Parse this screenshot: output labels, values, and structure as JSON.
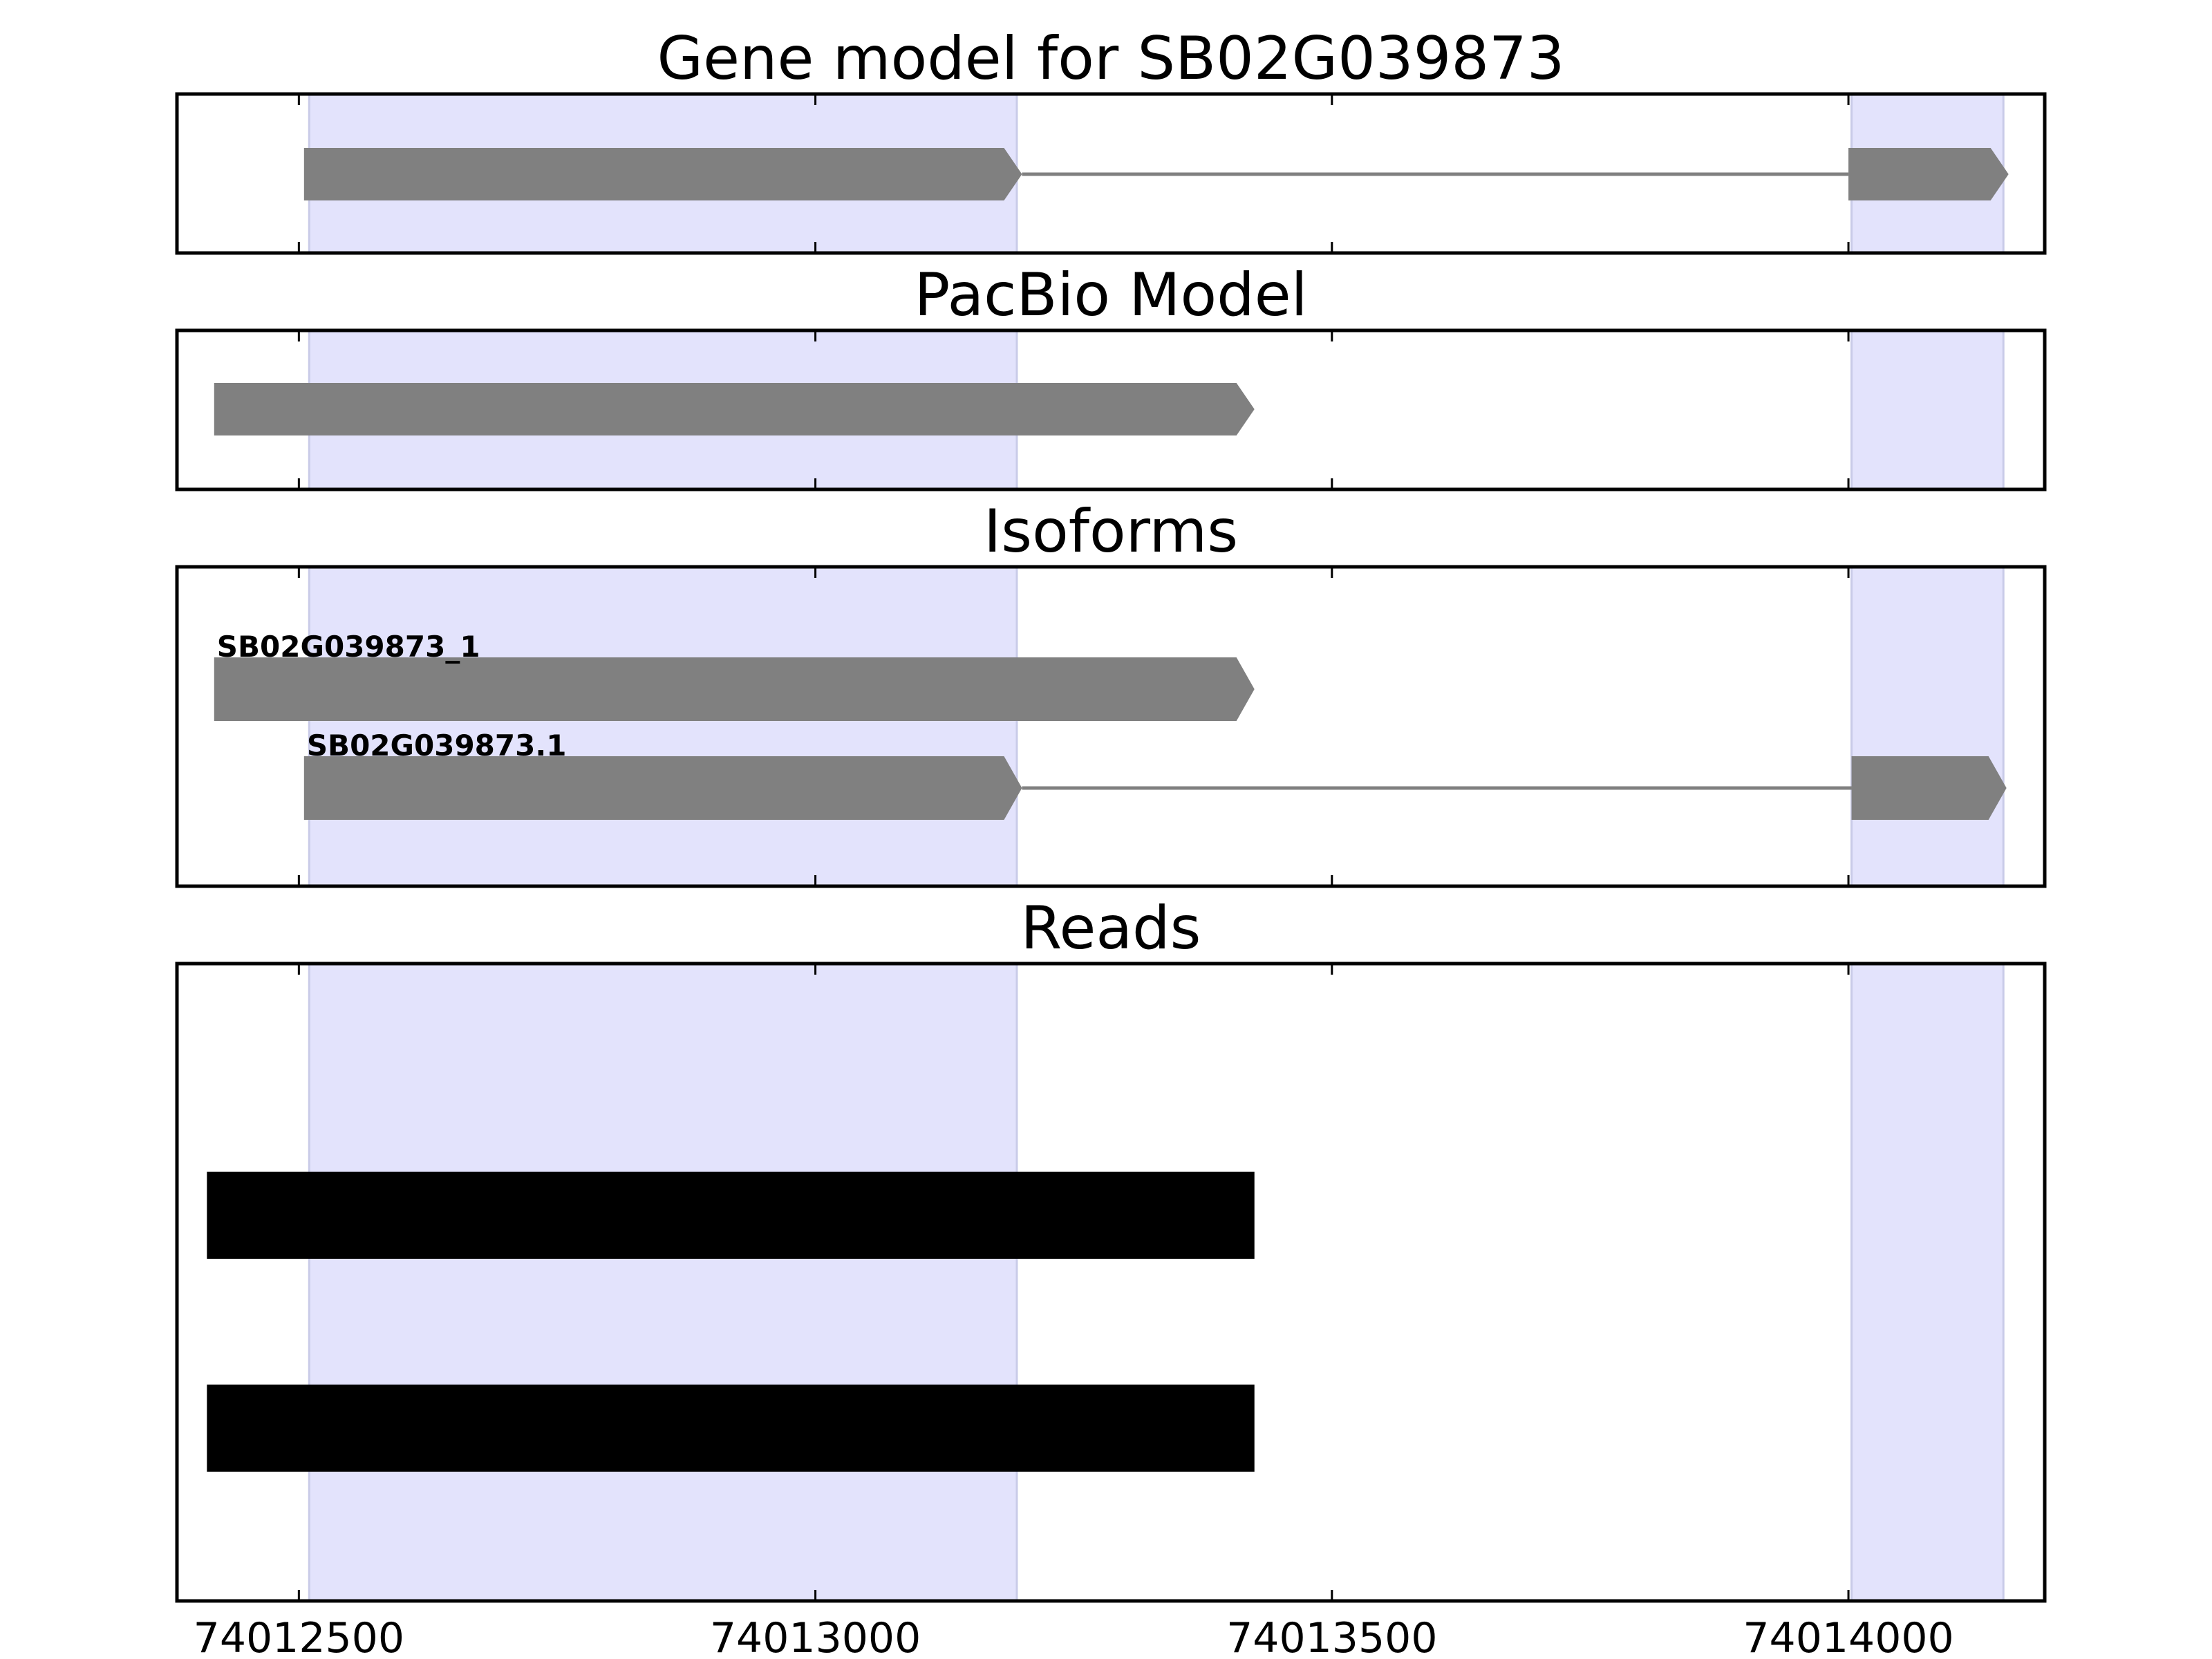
{
  "chart_data": {
    "type": "gene-track",
    "xlim": [
      74012382,
      74014190
    ],
    "x_ticks": [
      74012500,
      74013000,
      74013500,
      74014000
    ],
    "x_tick_labels": [
      "74012500",
      "74013000",
      "74013500",
      "74014000"
    ],
    "highlight_regions": [
      [
        74012510,
        74013195
      ],
      [
        74014003,
        74014150
      ]
    ],
    "panels": [
      {
        "title": "Gene model for SB02G039873",
        "features": [
          {
            "label": "",
            "blocks": [
              [
                74012505,
                74013200
              ],
              [
                74014000,
                74014155
              ]
            ]
          }
        ]
      },
      {
        "title": "PacBio Model",
        "features": [
          {
            "label": "",
            "blocks": [
              [
                74012418,
                74013425
              ]
            ]
          }
        ]
      },
      {
        "title": "Isoforms",
        "features": [
          {
            "label": "SB02G039873_1",
            "blocks": [
              [
                74012418,
                74013425
              ]
            ]
          },
          {
            "label": "SB02G039873.1",
            "blocks": [
              [
                74012505,
                74013200
              ],
              [
                74014003,
                74014153
              ]
            ]
          }
        ]
      },
      {
        "title": "Reads",
        "features": [
          {
            "label": "",
            "blocks": [
              [
                74012411,
                74013425
              ]
            ]
          },
          {
            "label": "",
            "blocks": [
              [
                74012411,
                74013425
              ]
            ]
          }
        ]
      }
    ]
  },
  "colors": {
    "highlight": "#e3e3fc",
    "highlight_edge": "#c9cbe8",
    "exon": "#808080",
    "intron": "#808080",
    "read": "#000000",
    "axis": "#000000"
  }
}
